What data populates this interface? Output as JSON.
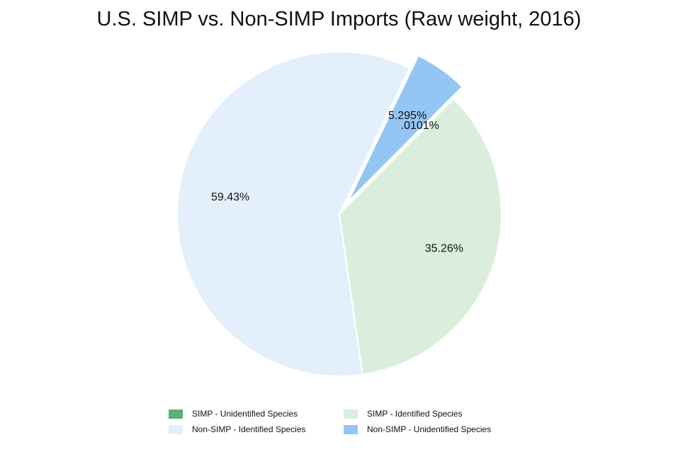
{
  "chart_data": {
    "type": "pie",
    "title": "U.S. SIMP vs. Non-SIMP Imports (Raw weight, 2016)",
    "legend_position": "bottom",
    "slices": [
      {
        "name": "SIMP - Unidentified Species",
        "value": 0.0101,
        "label": ".0101%",
        "color": "#57b26b"
      },
      {
        "name": "SIMP - Identified Species",
        "value": 35.26,
        "label": "35.26%",
        "color": "#dbeedd"
      },
      {
        "name": "Non-SIMP - Identified Species",
        "value": 59.43,
        "label": "59.43%",
        "color": "#e3f0fb"
      },
      {
        "name": "Non-SIMP - Unidentified Species",
        "value": 5.295,
        "label": "5.295%",
        "color": "#93c6f4",
        "exploded": true
      }
    ]
  },
  "legend": {
    "items": [
      {
        "label": "SIMP - Unidentified Species",
        "color": "#57b26b"
      },
      {
        "label": "SIMP - Identified Species",
        "color": "#dbeedd"
      },
      {
        "label": "Non-SIMP - Identified Species",
        "color": "#e3f0fb"
      },
      {
        "label": "Non-SIMP - Unidentified Species",
        "color": "#93c6f4"
      }
    ]
  }
}
